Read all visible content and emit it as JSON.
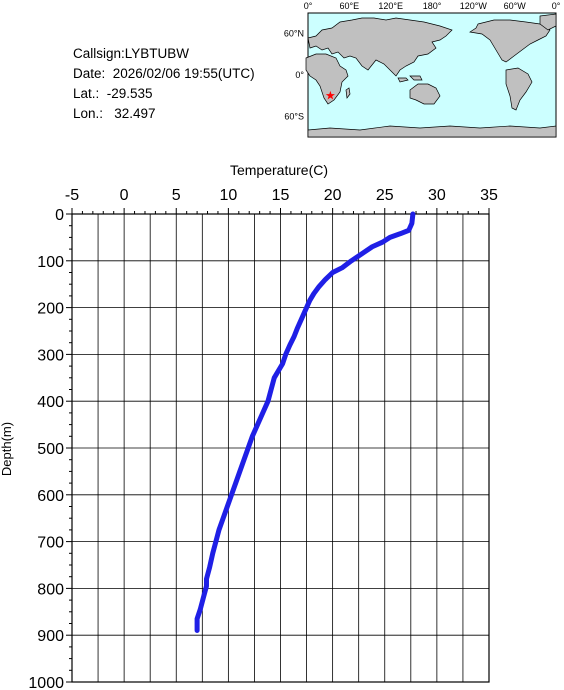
{
  "info": {
    "callsign": "Callsign:LYBTUBW",
    "date": "Date:  2026/02/06 19:55(UTC)",
    "lat": "Lat.:  -29.535",
    "lon": "Lon.:   32.497"
  },
  "map": {
    "lon_labels": [
      "0°",
      "60°E",
      "120°E",
      "180°",
      "120°W",
      "60°W",
      "0°"
    ],
    "lat_labels": [
      "60°N",
      "0°",
      "60°S"
    ],
    "marker": {
      "lon": 32.497,
      "lat": -29.535,
      "color": "#ff0000"
    },
    "ocean_color": "#ccffff",
    "land_color": "#c0c0c0"
  },
  "chart_data": {
    "type": "line",
    "xlabel": "Temperature(C)",
    "ylabel": "Depth(m)",
    "xlim": [
      -5,
      35
    ],
    "ylim": [
      0,
      1000
    ],
    "x_ticks": [
      "-5",
      "0",
      "5",
      "10",
      "15",
      "20",
      "25",
      "30",
      "35"
    ],
    "y_ticks": [
      "0",
      "100",
      "200",
      "300",
      "400",
      "500",
      "600",
      "700",
      "800",
      "900",
      "1000"
    ],
    "grid": true,
    "line_color": "#1f1fe6",
    "x_axis_position": "top",
    "series": [
      {
        "points": [
          [
            27.7,
            0
          ],
          [
            27.6,
            20
          ],
          [
            27.3,
            35
          ],
          [
            26.5,
            42
          ],
          [
            25.5,
            50
          ],
          [
            24.8,
            60
          ],
          [
            23.8,
            70
          ],
          [
            22.8,
            85
          ],
          [
            21.8,
            100
          ],
          [
            20.9,
            115
          ],
          [
            20.0,
            125
          ],
          [
            19.3,
            140
          ],
          [
            18.7,
            155
          ],
          [
            18.2,
            170
          ],
          [
            17.8,
            185
          ],
          [
            17.4,
            205
          ],
          [
            17.0,
            225
          ],
          [
            16.6,
            245
          ],
          [
            16.3,
            262
          ],
          [
            15.9,
            280
          ],
          [
            15.5,
            300
          ],
          [
            15.2,
            320
          ],
          [
            14.8,
            335
          ],
          [
            14.4,
            350
          ],
          [
            14.1,
            375
          ],
          [
            13.8,
            400
          ],
          [
            13.3,
            425
          ],
          [
            12.8,
            450
          ],
          [
            12.3,
            475
          ],
          [
            11.9,
            500
          ],
          [
            11.5,
            525
          ],
          [
            11.1,
            550
          ],
          [
            10.7,
            575
          ],
          [
            10.3,
            600
          ],
          [
            9.9,
            625
          ],
          [
            9.5,
            650
          ],
          [
            9.1,
            675
          ],
          [
            8.8,
            700
          ],
          [
            8.5,
            725
          ],
          [
            8.2,
            755
          ],
          [
            7.9,
            780
          ],
          [
            7.9,
            795
          ],
          [
            7.6,
            820
          ],
          [
            7.3,
            845
          ],
          [
            7.0,
            865
          ],
          [
            7.0,
            880
          ],
          [
            7.0,
            890
          ]
        ]
      }
    ]
  }
}
